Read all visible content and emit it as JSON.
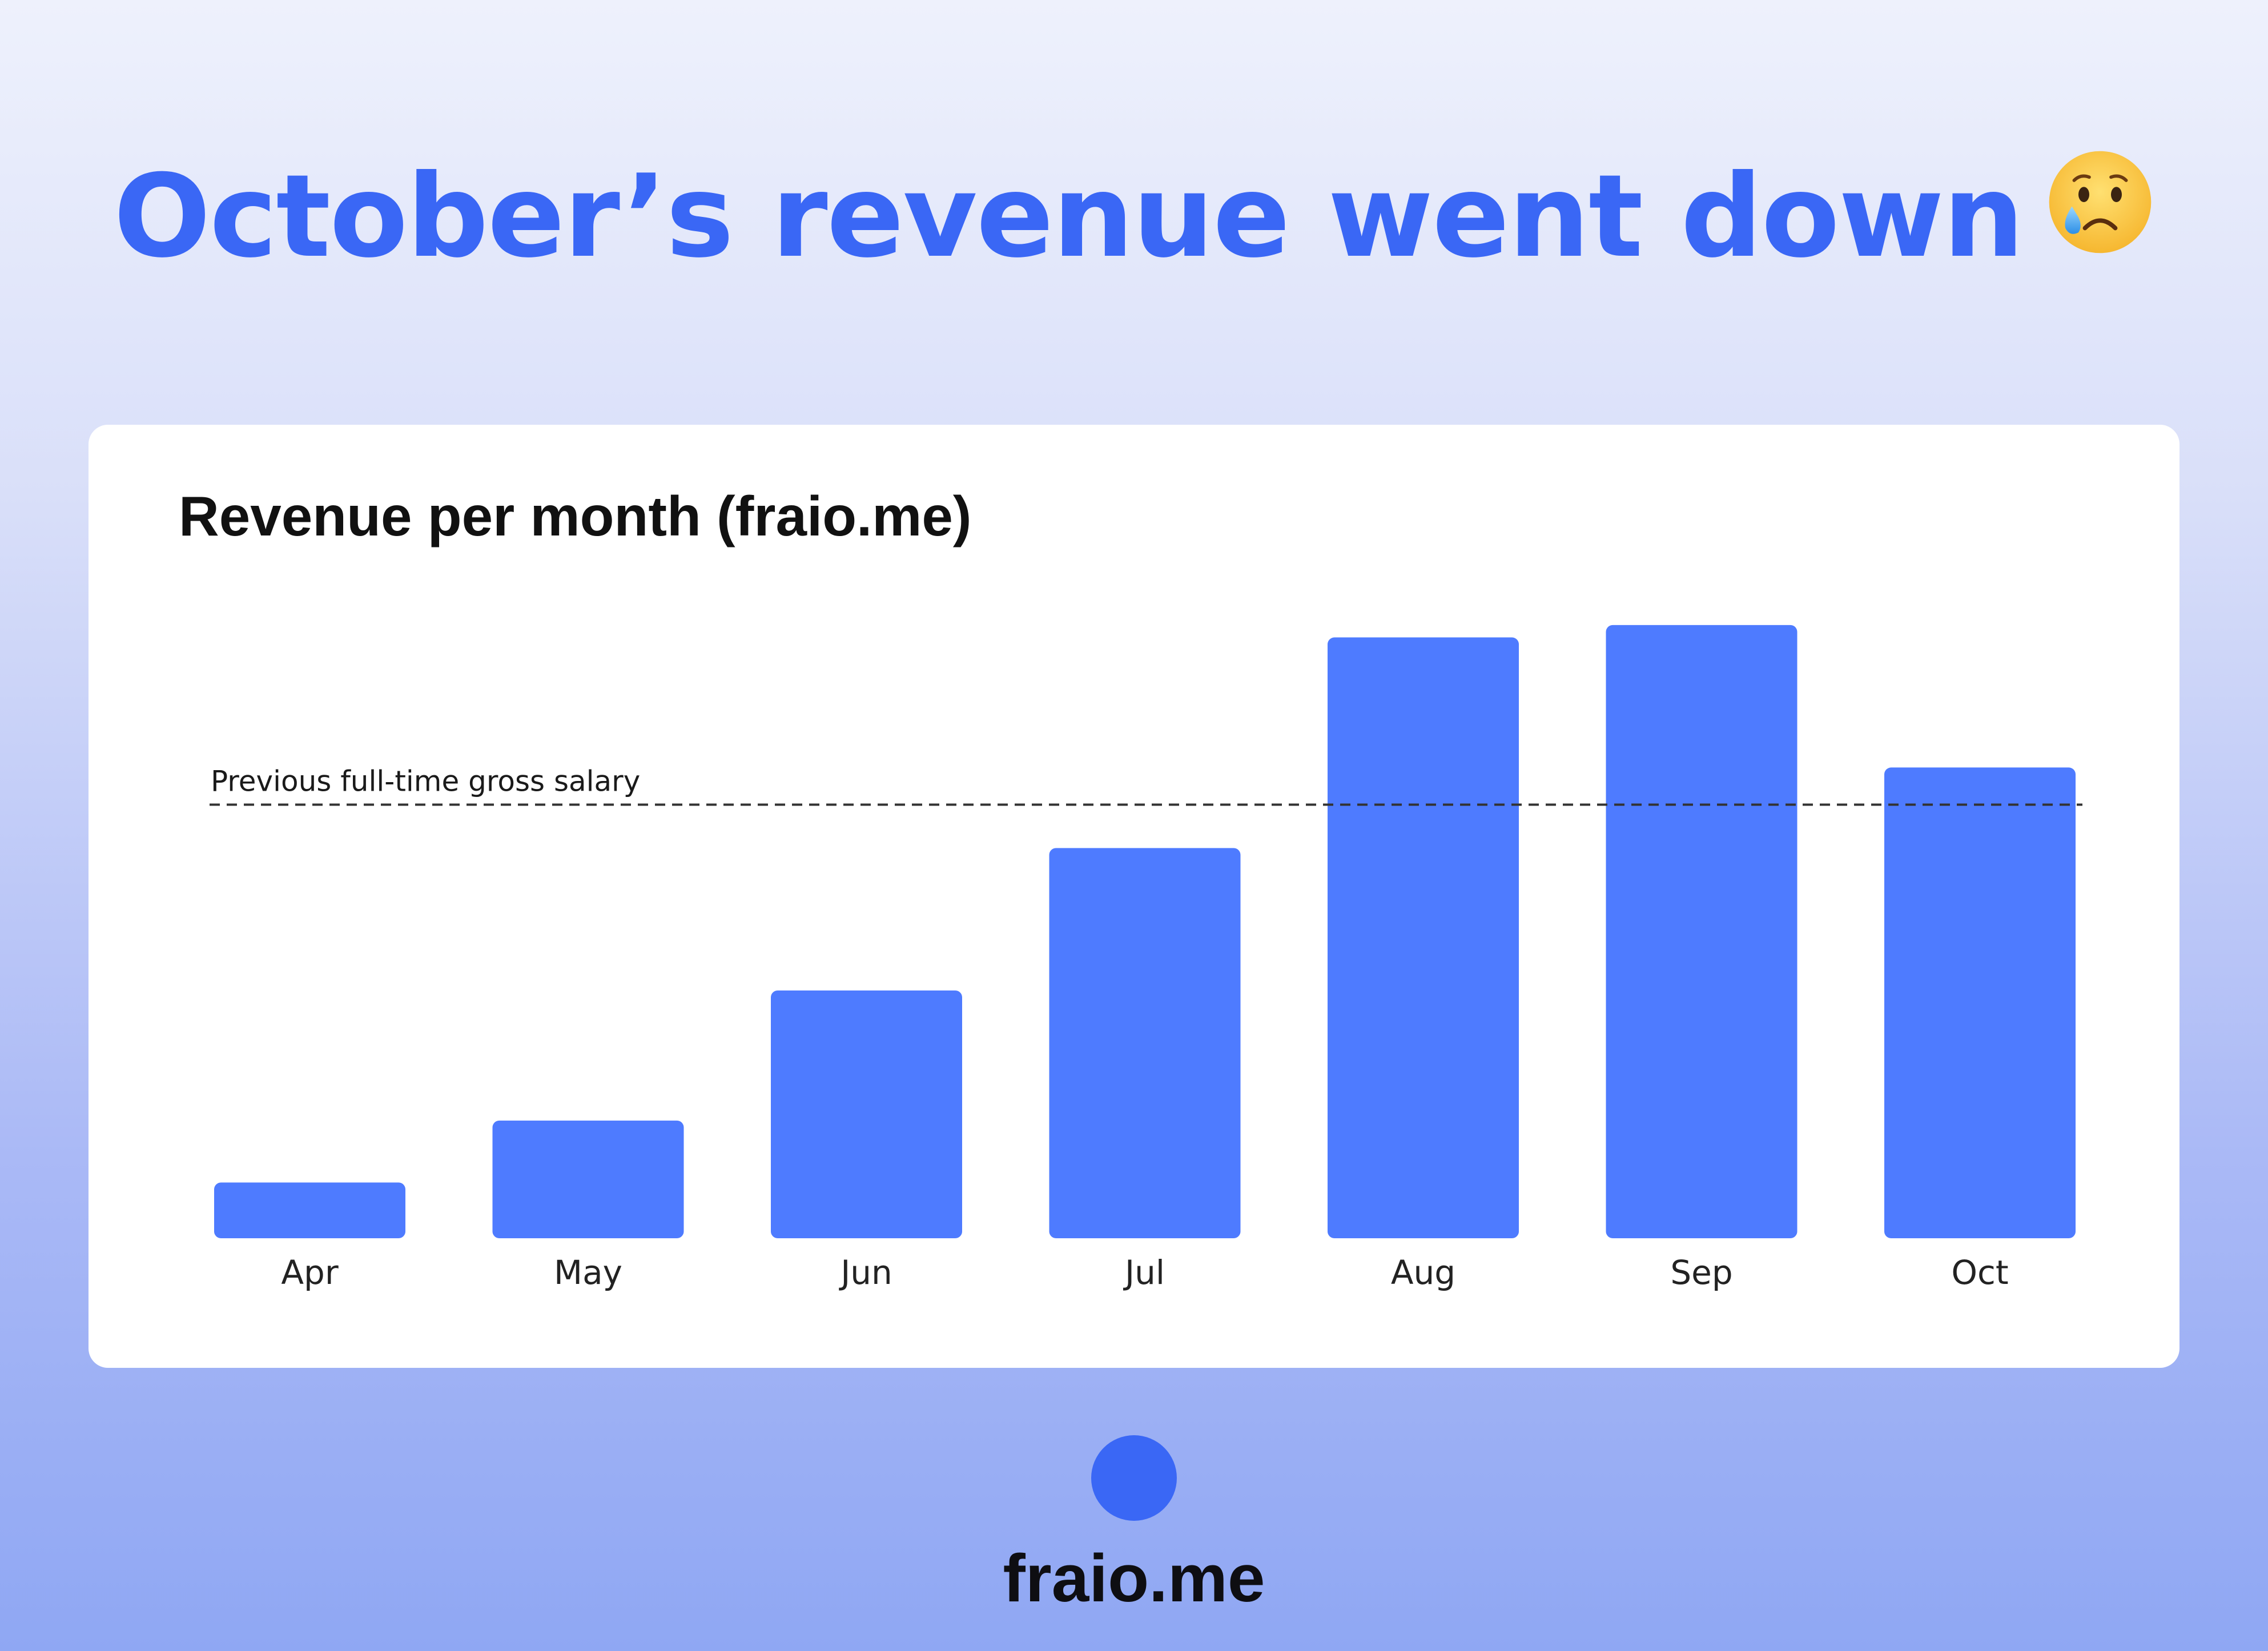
{
  "headline": {
    "text": "October’s revenue went down",
    "emoji_icon": "crying-face-emoji"
  },
  "colors": {
    "headline": "#3a67f5",
    "bar": "#4e7bff",
    "card": "#ffffff",
    "logo_dot": "#3a67f5"
  },
  "chart_data": {
    "type": "bar",
    "title": "Revenue per month (fraio.me)",
    "categories": [
      "Apr",
      "May",
      "Jun",
      "Jul",
      "Aug",
      "Sep",
      "Oct"
    ],
    "values": [
      9,
      19,
      40,
      63,
      97,
      99,
      76
    ],
    "ylim": [
      0,
      100
    ],
    "y_axis_shown": false,
    "grid": false,
    "reference_line": {
      "label": "Previous full-time gross salary",
      "value": 70,
      "style": "dashed"
    }
  },
  "footer": {
    "brand": "fraio.me"
  }
}
